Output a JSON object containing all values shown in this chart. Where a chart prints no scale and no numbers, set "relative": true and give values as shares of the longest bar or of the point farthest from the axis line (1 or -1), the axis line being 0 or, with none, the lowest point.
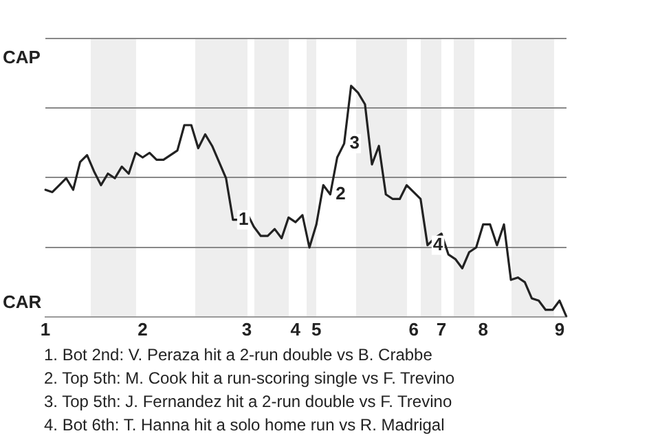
{
  "chart_data": {
    "type": "line",
    "relative": true,
    "categories": [
      "1",
      null,
      null,
      null,
      null,
      null,
      null,
      null,
      null,
      null,
      null,
      null,
      null,
      null,
      "2",
      null,
      null,
      null,
      null,
      null,
      null,
      null,
      null,
      null,
      null,
      null,
      null,
      null,
      null,
      "3",
      null,
      null,
      null,
      null,
      null,
      null,
      "4",
      null,
      null,
      "5",
      null,
      null,
      null,
      null,
      null,
      null,
      null,
      null,
      null,
      null,
      null,
      null,
      null,
      "6",
      null,
      null,
      null,
      "7",
      null,
      null,
      null,
      null,
      null,
      "8",
      null,
      null,
      null,
      null,
      null,
      null,
      null,
      null,
      null,
      null,
      "9",
      null
    ],
    "series": [
      {
        "color": "#222222",
        "values": [
          0.55,
          0.54,
          0.57,
          0.6,
          0.55,
          0.67,
          0.7,
          0.63,
          0.57,
          0.62,
          0.6,
          0.65,
          0.62,
          0.71,
          0.69,
          0.71,
          0.68,
          0.68,
          0.7,
          0.72,
          0.83,
          0.83,
          0.73,
          0.79,
          0.74,
          0.67,
          0.6,
          0.42,
          0.42,
          0.45,
          0.39,
          0.35,
          0.35,
          0.38,
          0.34,
          0.43,
          0.41,
          0.44,
          0.3,
          0.4,
          0.57,
          0.53,
          0.69,
          0.75,
          1,
          0.97,
          0.92,
          0.66,
          0.74,
          0.53,
          0.51,
          0.51,
          0.57,
          0.54,
          0.51,
          0.31,
          0.34,
          0.36,
          0.27,
          0.25,
          0.21,
          0.28,
          0.3,
          0.4,
          0.4,
          0.31,
          0.4,
          0.16,
          0.17,
          0.15,
          0.08,
          0.07,
          0.03,
          0.03,
          0.07,
          0
        ]
      }
    ],
    "grid": "y",
    "legend": false,
    "marker": "none",
    "line_style": "solid",
    "annotations": [
      "CAP",
      "CAR",
      {
        "text": "1",
        "y": 0.42
      },
      {
        "text": "2",
        "y": 0.53
      },
      {
        "text": "3",
        "y": 0.75
      },
      {
        "text": "4",
        "y": 0.31
      },
      "1. Bot 2nd: V. Peraza hit a 2-run double vs B. Crabbe",
      "2. Top 5th: M. Cook hit a run-scoring single vs F. Trevino",
      "3. Top 5th: J. Fernandez hit a 2-run double vs F. Trevino",
      "4. Bot 6th: T. Hanna hit a solo home run vs R. Madrigal"
    ]
  }
}
